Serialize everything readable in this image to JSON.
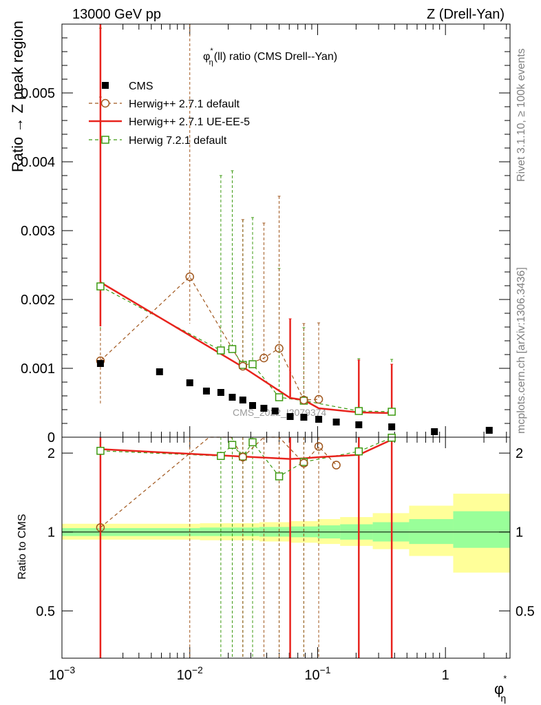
{
  "header": {
    "left": "13000 GeV pp",
    "right": "Z (Drell-Yan)"
  },
  "side_labels": {
    "rivet": "Rivet 3.1.10, ≥ 100k events",
    "mcplots": "mcplots.cern.ch [arXiv:1306.3436]"
  },
  "watermark": "CMS_2022_I2079374",
  "chart_data": {
    "type": "scatter",
    "title_parts": {
      "pre": "φ",
      "sup": "*",
      "sub": "η",
      "post": "(ll) ratio (CMS Drell--Yan)"
    },
    "xlabel_parts": {
      "main": "φ",
      "sup": "*",
      "sub": "η"
    },
    "ylabel": "Ratio → Z peak region",
    "ratio_ylabel": "Ratio to CMS",
    "x_scale": "log",
    "xlim": [
      0.001,
      3.2
    ],
    "ylim": [
      0,
      0.006
    ],
    "ratio_ylim": [
      0.33,
      2.3
    ],
    "x_ticks": [
      {
        "v": 0.001,
        "base": "10",
        "exp": "−3"
      },
      {
        "v": 0.01,
        "base": "10",
        "exp": "−2"
      },
      {
        "v": 0.1,
        "base": "10",
        "exp": "−1"
      },
      {
        "v": 1,
        "base": "1",
        "exp": ""
      }
    ],
    "y_ticks": [
      {
        "v": 0,
        "label": "0"
      },
      {
        "v": 0.001,
        "label": "0.001"
      },
      {
        "v": 0.002,
        "label": "0.002"
      },
      {
        "v": 0.003,
        "label": "0.003"
      },
      {
        "v": 0.004,
        "label": "0.004"
      },
      {
        "v": 0.005,
        "label": "0.005"
      }
    ],
    "ratio_ticks": [
      {
        "v": 0.5,
        "label": "0.5"
      },
      {
        "v": 1,
        "label": "1"
      },
      {
        "v": 2,
        "label": "2"
      }
    ],
    "legend": [
      "CMS",
      "Herwig++ 2.7.1 default",
      "Herwig++ 2.7.1 UE-EE-5",
      "Herwig 7.2.1 default"
    ],
    "legend_position": "top-left",
    "colors": {
      "data": "#000000",
      "h271": "#a0561c",
      "ueee5": "#e8231d",
      "h721": "#3c9a10",
      "band_inner": "#99ff99",
      "band_outer": "#ffff99"
    },
    "cms": {
      "x": [
        0.002,
        0.0058,
        0.01,
        0.0135,
        0.0175,
        0.0215,
        0.026,
        0.031,
        0.038,
        0.0465,
        0.061,
        0.078,
        0.102,
        0.14,
        0.21,
        0.38,
        0.82,
        2.2
      ],
      "y": [
        0.00107,
        0.00095,
        0.00079,
        0.00067,
        0.00065,
        0.00058,
        0.00054,
        0.00046,
        0.00042,
        0.00038,
        0.0003,
        0.00029,
        0.00026,
        0.00022,
        0.00018,
        0.00015,
        8e-05,
        0.0001
      ]
    },
    "herwig271": {
      "x": [
        0.002,
        0.01,
        0.026,
        0.038,
        0.05,
        0.078,
        0.102
      ],
      "y": [
        0.00111,
        0.00233,
        0.00103,
        0.00115,
        0.00129,
        0.00054,
        0.00055
      ],
      "err_up": [
        0.00383,
        0.00399,
        0.00213,
        0.00196,
        0.00221,
        0.00111,
        0.00111
      ],
      "err_down": [
        0.00064,
        0.00068,
        2e-05,
        2e-05,
        0.0,
        0.0,
        0.0
      ],
      "ratio_x": [
        0.002,
        0.0142,
        0.021,
        0.026,
        0.038,
        0.05,
        0.078,
        0.102,
        0.14
      ],
      "ratio_y": [
        1.04,
        2.3,
        2.3,
        1.93,
        2.3,
        2.3,
        1.83,
        2.12,
        1.8
      ]
    },
    "ueee5": {
      "x": [
        0.002,
        0.026,
        0.061,
        0.078,
        0.102,
        0.21,
        0.38
      ],
      "y": [
        0.00225,
        0.00102,
        0.00057,
        0.00054,
        0.00042,
        0.00036,
        0.00035
      ],
      "ratio_x": [
        0.002,
        0.026,
        0.061,
        0.078,
        0.102,
        0.21,
        0.38
      ],
      "ratio_y": [
        2.07,
        1.94,
        1.9,
        1.91,
        1.93,
        1.97,
        2.25
      ],
      "err_x": [
        0.002,
        0.061,
        0.21,
        0.38
      ],
      "err_up": [
        0.00384,
        0.00115,
        0.00076,
        0.00071
      ],
      "err_down": [
        0.00064,
        0.0,
        0.0,
        0.0
      ]
    },
    "herwig721": {
      "x": [
        0.002,
        0.0175,
        0.0215,
        0.026,
        0.031,
        0.05,
        0.078,
        0.21,
        0.38
      ],
      "y": [
        0.00219,
        0.00126,
        0.00128,
        0.00105,
        0.00106,
        0.00058,
        0.00053,
        0.00038,
        0.00037
      ],
      "err_up": [
        0.00375,
        0.00254,
        0.00259,
        0.00211,
        0.00213,
        0.00187,
        0.00106,
        0.00076,
        0.00076
      ],
      "err_down": [
        0.00066,
        0.0,
        0.0,
        0.0,
        0.0,
        0.0,
        0.0,
        0.0,
        0.0
      ],
      "ratio_y": [
        2.04,
        1.95,
        2.15,
        1.94,
        2.2,
        1.63,
        1.85,
        2.03,
        2.29
      ]
    },
    "band": {
      "edges": [
        0.001,
        0.012,
        0.035,
        0.062,
        0.1,
        0.15,
        0.27,
        0.52,
        1.15,
        3.2
      ],
      "inner_lo": [
        0.965,
        0.965,
        0.96,
        0.955,
        0.945,
        0.935,
        0.92,
        0.9,
        0.87
      ],
      "inner_hi": [
        1.035,
        1.04,
        1.045,
        1.05,
        1.06,
        1.07,
        1.09,
        1.12,
        1.2
      ],
      "outer_lo": [
        0.935,
        0.93,
        0.92,
        0.91,
        0.9,
        0.885,
        0.86,
        0.81,
        0.7
      ],
      "outer_hi": [
        1.075,
        1.08,
        1.09,
        1.1,
        1.12,
        1.14,
        1.18,
        1.26,
        1.4
      ]
    }
  }
}
